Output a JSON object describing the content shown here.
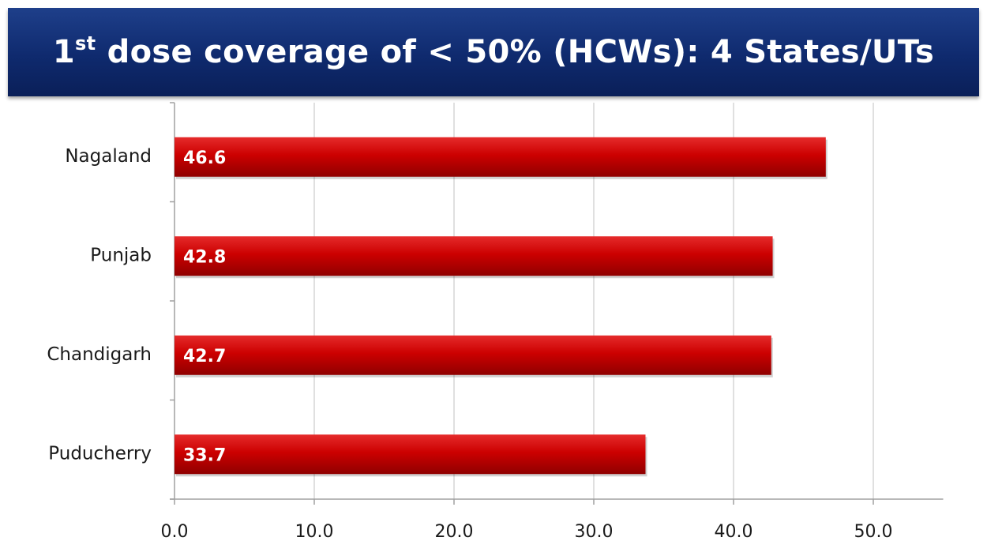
{
  "title": {
    "prefix": "1",
    "superscript": "st",
    "rest": " dose coverage of < 50% (HCWs): 4 States/UTs"
  },
  "colors": {
    "banner": "#0f2a6e",
    "bar": "#cc0000",
    "bar_dark": "#8f0000",
    "grid": "#cccccc",
    "axis": "#a0a0a0"
  },
  "chart_data": {
    "type": "bar",
    "orientation": "horizontal",
    "title": "1st dose coverage of < 50% (HCWs): 4 States/UTs",
    "categories": [
      "Nagaland",
      "Punjab",
      "Chandigarh",
      "Puducherry"
    ],
    "values": [
      46.6,
      42.8,
      42.7,
      33.7
    ],
    "data_labels": [
      "46.6",
      "42.8",
      "42.7",
      "33.7"
    ],
    "xlim": [
      0,
      55
    ],
    "x_ticks": [
      0,
      10,
      20,
      30,
      40,
      50
    ],
    "x_tick_labels": [
      "0.0",
      "10.0",
      "20.0",
      "30.0",
      "40.0",
      "50.0"
    ],
    "grid": true,
    "legend": "none",
    "xlabel": "",
    "ylabel": ""
  }
}
